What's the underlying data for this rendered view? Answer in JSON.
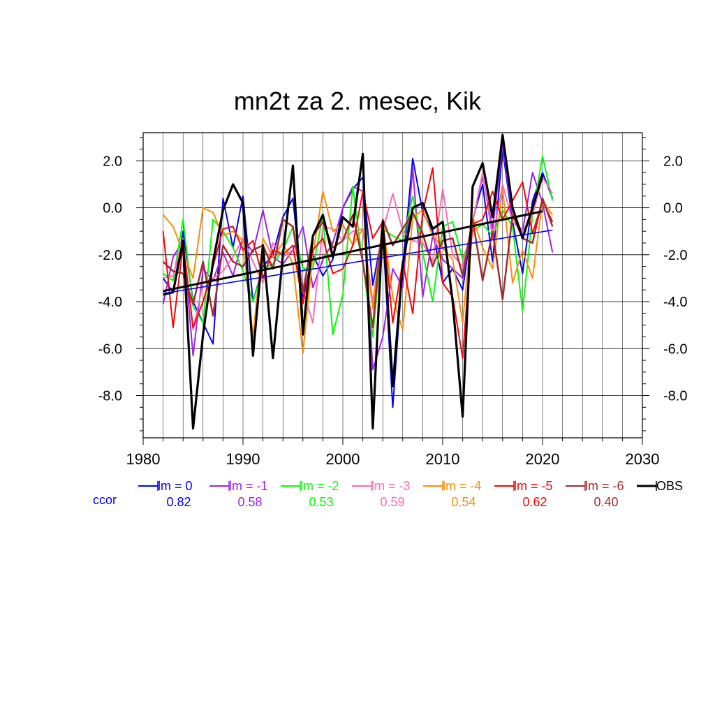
{
  "chart_data": {
    "type": "line",
    "title": "mn2t za 2. mesec, Kik",
    "xlabel": "",
    "ylabel": "",
    "xlim": [
      1980,
      2030
    ],
    "ylim": [
      -9.8,
      3.2
    ],
    "x_ticks": [
      1980,
      1990,
      2000,
      2010,
      2020,
      2030
    ],
    "y_ticks": [
      2.0,
      0.0,
      -2.0,
      -4.0,
      -6.0,
      -8.0
    ],
    "y_tick_labels": [
      "2.0",
      "0.0",
      "-2.0",
      "-4.0",
      "-6.0",
      "-8.0"
    ],
    "grid": true,
    "legend_position": "bottom",
    "ccor_label": "ccor",
    "x": [
      1982,
      1983,
      1984,
      1985,
      1986,
      1987,
      1988,
      1989,
      1990,
      1991,
      1992,
      1993,
      1994,
      1995,
      1996,
      1997,
      1998,
      1999,
      2000,
      2001,
      2002,
      2003,
      2004,
      2005,
      2006,
      2007,
      2008,
      2009,
      2010,
      2011,
      2012,
      2013,
      2014,
      2015,
      2016,
      2017,
      2018,
      2019,
      2020,
      2021
    ],
    "series": [
      {
        "name": "lm = 0",
        "ccor": "0.82",
        "color": "#0000ff",
        "width": 2,
        "values": [
          -3.0,
          -3.6,
          -1.0,
          -4.0,
          -4.9,
          -5.8,
          0.4,
          -1.7,
          0.5,
          -4.0,
          -2.5,
          -2.0,
          -0.4,
          0.4,
          -3.8,
          -2.0,
          -2.9,
          -2.2,
          0.0,
          0.8,
          1.3,
          -3.3,
          -1.0,
          -8.5,
          -2.5,
          2.1,
          -0.2,
          -1.0,
          -3.2,
          -2.6,
          -3.5,
          -0.5,
          1.0,
          -2.3,
          2.5,
          -0.6,
          -2.8,
          0.3,
          1.5,
          0.4
        ],
        "trend": [
          -3.65,
          -0.95
        ]
      },
      {
        "name": "lm = -1",
        "ccor": "0.58",
        "color": "#a020f0",
        "width": 2,
        "values": [
          -4.1,
          -2.1,
          -1.4,
          -6.3,
          -2.6,
          -3.1,
          -1.9,
          -2.9,
          -1.3,
          -1.9,
          -0.1,
          -2.1,
          -2.4,
          -1.8,
          -0.8,
          -3.4,
          -2.2,
          -1.5,
          0.0,
          0.9,
          0.7,
          -6.9,
          -5.5,
          -2.6,
          -3.4,
          1.7,
          -3.8,
          -1.2,
          -2.2,
          -2.6,
          -3.0,
          -0.6,
          1.4,
          -0.9,
          2.7,
          -0.4,
          -1.0,
          1.5,
          0.2,
          -1.9
        ]
      },
      {
        "name": "lm = -2",
        "ccor": "0.53",
        "color": "#00ff00",
        "width": 2,
        "values": [
          -2.8,
          -3.1,
          -0.5,
          -4.2,
          -4.9,
          -0.5,
          -1.0,
          -1.7,
          -2.7,
          -4.0,
          -2.6,
          -2.4,
          -1.8,
          -0.8,
          -2.6,
          -2.6,
          -0.3,
          -5.4,
          -3.7,
          0.9,
          -2.4,
          -5.5,
          -0.9,
          -1.2,
          -1.4,
          0.5,
          -1.9,
          -4.0,
          -0.8,
          -0.6,
          -2.2,
          -1.0,
          -0.7,
          -1.2,
          -0.1,
          -0.8,
          -4.4,
          -0.3,
          2.2,
          0.3
        ]
      },
      {
        "name": "lm = -3",
        "ccor": "0.59",
        "color": "#ff69b4",
        "width": 2,
        "values": [
          -3.0,
          -2.9,
          -1.3,
          -5.2,
          -3.2,
          -3.0,
          -2.7,
          -2.1,
          -1.3,
          -2.3,
          -3.2,
          -1.5,
          -2.1,
          -1.8,
          -3.5,
          -4.9,
          -0.8,
          -0.9,
          -1.4,
          -1.0,
          -0.9,
          -4.0,
          -1.0,
          0.6,
          -1.0,
          -1.4,
          -1.5,
          -2.3,
          0.8,
          -2.0,
          -2.5,
          -0.6,
          1.5,
          -1.3,
          1.0,
          -0.6,
          -1.0,
          -0.3,
          1.3,
          0.6
        ]
      },
      {
        "name": "lm = -4",
        "ccor": "0.54",
        "color": "#ff8c00",
        "width": 2,
        "values": [
          -0.3,
          -0.8,
          -1.9,
          -3.0,
          0.0,
          -0.2,
          -1.2,
          -1.0,
          -1.4,
          -5.5,
          -1.3,
          -2.1,
          -1.5,
          -2.4,
          -6.2,
          -2.0,
          0.7,
          -1.0,
          -0.7,
          -1.6,
          -0.9,
          -4.3,
          -0.6,
          -3.8,
          -5.2,
          -0.4,
          -0.1,
          -1.2,
          -1.7,
          -2.2,
          -4.9,
          -0.4,
          -1.7,
          -2.6,
          0.8,
          -3.2,
          -1.8,
          -3.0,
          0.3,
          -0.3
        ]
      },
      {
        "name": "lm = -5",
        "ccor": "0.62",
        "color": "#ff0000",
        "width": 2,
        "values": [
          -1.0,
          -5.1,
          -1.6,
          -5.1,
          -4.0,
          -2.5,
          -0.9,
          -0.8,
          -1.8,
          -1.4,
          -3.0,
          -1.8,
          -2.0,
          -1.6,
          -4.1,
          -1.8,
          -1.3,
          -2.8,
          -2.6,
          -1.6,
          0.7,
          -1.3,
          -0.6,
          -4.9,
          -2.3,
          -4.5,
          -0.2,
          1.7,
          -3.2,
          -3.8,
          -6.4,
          -0.7,
          -0.5,
          0.7,
          -0.5,
          0.3,
          1.1,
          -1.1,
          0.3,
          -0.6
        ]
      },
      {
        "name": "lm = -6",
        "ccor": "0.40",
        "color": "#a52a2a",
        "width": 2.5,
        "values": [
          -2.3,
          -2.7,
          -2.8,
          -4.1,
          -2.3,
          -4.6,
          -1.6,
          -2.3,
          -2.5,
          -1.8,
          -1.6,
          -2.6,
          -0.5,
          -0.8,
          -3.6,
          -1.2,
          -0.6,
          -1.7,
          -1.4,
          -0.3,
          -2.3,
          -5.1,
          -0.5,
          -1.6,
          -0.9,
          -0.2,
          -1.1,
          -2.5,
          -1.4,
          -1.3,
          -2.9,
          -0.5,
          -3.1,
          -1.0,
          -3.9,
          -0.3,
          -1.3,
          -1.5,
          0.4,
          -0.8
        ]
      },
      {
        "name": "OBS",
        "ccor": "",
        "color": "#000000",
        "width": 3.2,
        "values": [
          -3.7,
          -3.6,
          -1.4,
          -9.4,
          -5.4,
          -2.3,
          -0.1,
          1.0,
          0.2,
          -6.3,
          -1.6,
          -6.4,
          -2.0,
          1.8,
          -5.4,
          -1.2,
          -0.3,
          -2.1,
          -0.4,
          -0.8,
          2.3,
          -9.4,
          -0.6,
          -7.6,
          -2.4,
          0.0,
          0.2,
          -0.9,
          -0.6,
          -4.0,
          -8.9,
          0.9,
          1.9,
          -0.4,
          3.1,
          0.0,
          -1.3,
          0.0,
          1.4,
          null
        ],
        "trend": [
          -3.55,
          -0.15
        ]
      }
    ]
  }
}
